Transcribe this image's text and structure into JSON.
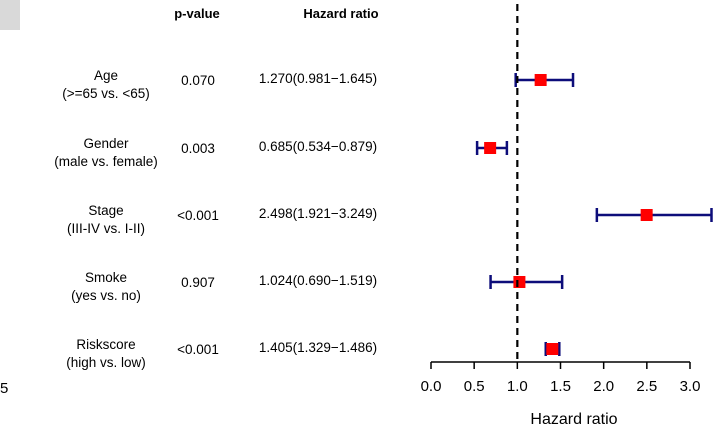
{
  "chart_data": {
    "type": "forest",
    "title": "",
    "columns": {
      "pvalue_header": "p-value",
      "hr_header": "Hazard ratio"
    },
    "rows": [
      {
        "variable": "Age",
        "comparison": "(>=65 vs. <65)",
        "pvalue": "0.070",
        "hr_text": "1.270(0.981−1.645)",
        "hr": 1.27,
        "lower": 0.981,
        "upper": 1.645
      },
      {
        "variable": "Gender",
        "comparison": "(male vs. female)",
        "pvalue": "0.003",
        "hr_text": "0.685(0.534−0.879)",
        "hr": 0.685,
        "lower": 0.534,
        "upper": 0.879
      },
      {
        "variable": "Stage",
        "comparison": "(III-IV vs. I-II)",
        "pvalue": "<0.001",
        "hr_text": "2.498(1.921−3.249)",
        "hr": 2.498,
        "lower": 1.921,
        "upper": 3.249
      },
      {
        "variable": "Smoke",
        "comparison": "(yes vs. no)",
        "pvalue": "0.907",
        "hr_text": "1.024(0.690−1.519)",
        "hr": 1.024,
        "lower": 0.69,
        "upper": 1.519
      },
      {
        "variable": "Riskscore",
        "comparison": "(high vs. low)",
        "pvalue": "<0.001",
        "hr_text": "1.405(1.329−1.486)",
        "hr": 1.405,
        "lower": 1.329,
        "upper": 1.486
      }
    ],
    "xlabel": "Hazard ratio",
    "xlim": [
      0,
      3.0
    ],
    "xticks": [
      "0.0",
      "0.5",
      "1.0",
      "1.5",
      "2.0",
      "2.5",
      "3.0"
    ],
    "reference_line": 1.0,
    "stray_left_label": "5",
    "colors": {
      "marker": "#ff0000",
      "ci": "#0d0d7a",
      "reference": "#000000",
      "corner_box": "#d9d9d9"
    }
  }
}
